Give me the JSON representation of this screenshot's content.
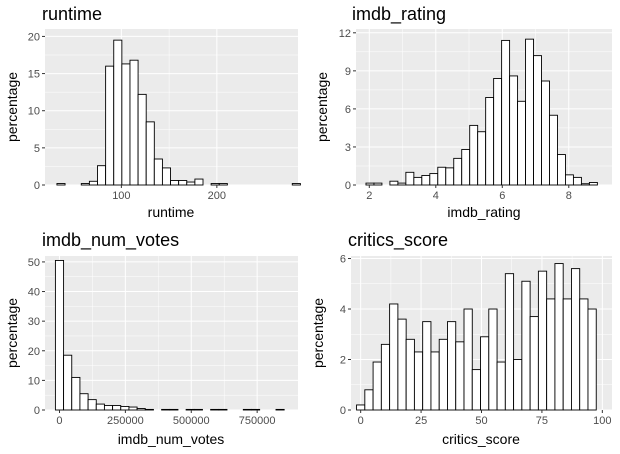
{
  "style": {
    "panel_background": "#ebebeb",
    "grid_major": "#ffffff",
    "bar_fill": "#ffffff",
    "bar_stroke": "#000000",
    "tick_text": "#4d4d4d"
  },
  "chart_data": [
    {
      "type": "bar",
      "title": "runtime",
      "xlabel": "runtime",
      "ylabel": "percentage",
      "xlim": [
        20,
        285
      ],
      "ylim": [
        0,
        21
      ],
      "x_ticks": [
        100,
        200
      ],
      "y_ticks": [
        0,
        5,
        10,
        15,
        20
      ],
      "x_tick_labels": [
        "100",
        "200"
      ],
      "y_tick_labels": [
        "0",
        "5",
        "10",
        "15",
        "20"
      ],
      "bin_start": 32.5,
      "bin_width": 8.5,
      "values": [
        0.2,
        0.0,
        0.0,
        0.2,
        0.5,
        2.6,
        16.0,
        19.5,
        16.3,
        16.8,
        12.2,
        8.5,
        3.5,
        2.3,
        0.6,
        0.6,
        0.4,
        0.8,
        0.0,
        0.2,
        0.2,
        0.0,
        0.0,
        0.0,
        0.0,
        0.0,
        0.0,
        0.0,
        0.0,
        0.2
      ]
    },
    {
      "type": "bar",
      "title": "imdb_rating",
      "xlabel": "imdb_rating",
      "ylabel": "percentage",
      "xlim": [
        1.6,
        9.3
      ],
      "ylim": [
        0,
        12.3
      ],
      "x_ticks": [
        2,
        4,
        6,
        8
      ],
      "y_ticks": [
        0,
        3,
        6,
        9,
        12
      ],
      "x_tick_labels": [
        "2",
        "4",
        "6",
        "8"
      ],
      "y_tick_labels": [
        "0",
        "3",
        "6",
        "9",
        "12"
      ],
      "bin_start": 1.9,
      "bin_width": 0.24,
      "values": [
        0.15,
        0.15,
        0.0,
        0.3,
        0.15,
        1.0,
        0.6,
        0.75,
        0.9,
        1.4,
        1.35,
        2.1,
        2.8,
        4.7,
        4.2,
        6.9,
        8.4,
        11.4,
        8.6,
        6.6,
        11.5,
        10.2,
        8.2,
        5.5,
        2.4,
        0.8,
        0.6,
        0.1,
        0.2
      ]
    },
    {
      "type": "bar",
      "title": "imdb_num_votes",
      "xlabel": "imdb_num_votes",
      "ylabel": "percentage",
      "xlim": [
        -55000,
        905000
      ],
      "ylim": [
        0,
        52
      ],
      "x_ticks": [
        0,
        250000,
        500000,
        750000
      ],
      "y_ticks": [
        0,
        10,
        20,
        30,
        40,
        50
      ],
      "x_tick_labels": [
        "0",
        "250000",
        "500000",
        "750000"
      ],
      "y_tick_labels": [
        "0",
        "10",
        "20",
        "30",
        "40",
        "50"
      ],
      "bin_start": -15500,
      "bin_width": 31000,
      "values": [
        50.5,
        18.5,
        11.0,
        5.5,
        3.5,
        2.0,
        1.5,
        1.5,
        1.2,
        1.0,
        0.5,
        0.2,
        0.0,
        0.2,
        0.2,
        0.0,
        0.2,
        0.2,
        0.0,
        0.2,
        0.2,
        0.0,
        0.0,
        0.2,
        0.2,
        0.0,
        0.0,
        0.2,
        0.0
      ]
    },
    {
      "type": "bar",
      "title": "critics_score",
      "xlabel": "critics_score",
      "ylabel": "percentage",
      "xlim": [
        -4,
        104
      ],
      "ylim": [
        0,
        6.1
      ],
      "x_ticks": [
        0,
        25,
        50,
        75,
        100
      ],
      "y_ticks": [
        0,
        2,
        4,
        6
      ],
      "x_tick_labels": [
        "0",
        "25",
        "50",
        "75",
        "100"
      ],
      "y_tick_labels": [
        "0",
        "2",
        "4",
        "6"
      ],
      "bin_start": -1.7,
      "bin_width": 3.42,
      "values": [
        0.2,
        0.8,
        1.9,
        2.6,
        4.2,
        3.6,
        2.8,
        2.3,
        3.5,
        2.3,
        2.8,
        3.5,
        2.7,
        4.0,
        1.6,
        2.9,
        4.0,
        1.9,
        5.4,
        2.0,
        5.1,
        3.7,
        5.5,
        4.4,
        5.8,
        4.4,
        5.6,
        4.4,
        4.0
      ]
    }
  ]
}
